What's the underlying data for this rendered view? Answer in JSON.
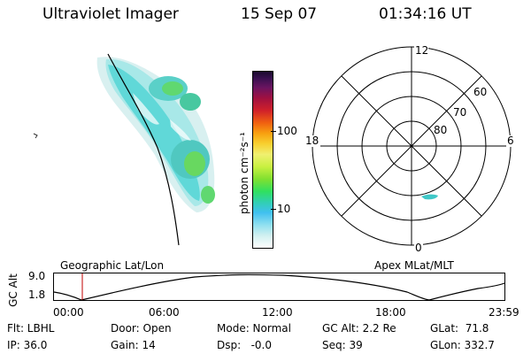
{
  "header": {
    "instrument": "Ultraviolet Imager",
    "date": "15 Sep 07",
    "time": "01:34:16 UT"
  },
  "colorbar": {
    "label": "photon cm⁻²s⁻¹",
    "ticks": [
      "100",
      "10"
    ],
    "colors": [
      "#1a0a2e",
      "#3a1050",
      "#6a1460",
      "#a01040",
      "#d0202a",
      "#f06010",
      "#f8a010",
      "#f8d030",
      "#f0f070",
      "#c8f040",
      "#80e030",
      "#30e060",
      "#30d0b0",
      "#40c0f0",
      "#90e0f0",
      "#d0f0f0",
      "#ffffff"
    ]
  },
  "polar": {
    "lat_labels": [
      "80",
      "70",
      "60"
    ],
    "mlt_labels": {
      "top": "12",
      "bottom": "0",
      "left": "18",
      "right": "6"
    }
  },
  "altitude_plot": {
    "ylabel": "GC Alt",
    "ytick_top": "9.0",
    "ytick_bottom": "1.8",
    "left_title": "Geographic Lat/Lon",
    "right_title": "Apex MLat/MLT",
    "xticks": [
      "00:00",
      "06:00",
      "12:00",
      "18:00",
      "23:59"
    ]
  },
  "info": {
    "flt": "Flt: LBHL",
    "ip": "IP: 36.0",
    "door": "Door: Open",
    "gain": "Gain: 14",
    "mode": "Mode: Normal",
    "dsp": "Dsp:   -0.0",
    "gc_alt": "GC Alt: 2.2 Re",
    "seq": "Seq: 39",
    "glat": "GLat:  71.8",
    "glon": "GLon: 332.7"
  }
}
